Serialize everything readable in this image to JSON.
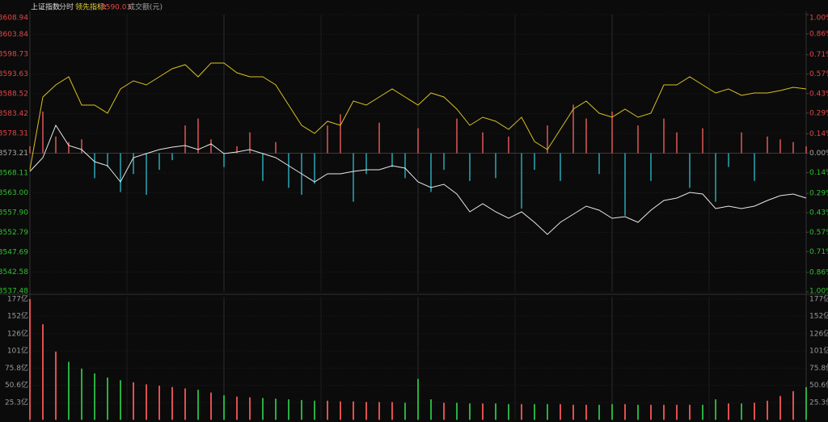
{
  "chart_data": [
    {
      "type": "line",
      "title": "分时",
      "indicator": {
        "label": "领先指标:",
        "value": 3590.03
      },
      "ylim": [
        3537.48,
        3608.94
      ],
      "yticks": [
        {
          "value": 3608.94,
          "label": "3608.94"
        },
        {
          "value": 3603.84,
          "label": "3603.84"
        },
        {
          "value": 3598.73,
          "label": "3598.73"
        },
        {
          "value": 3593.63,
          "label": "3593.63"
        },
        {
          "value": 3588.52,
          "label": "3588.52"
        },
        {
          "value": 3583.42,
          "label": "3583.42"
        },
        {
          "value": 3578.31,
          "label": "3578.31"
        },
        {
          "value": 3573.21,
          "label": "3573.21"
        },
        {
          "value": 3568.11,
          "label": "3568.11"
        },
        {
          "value": 3563.0,
          "label": "3563.00"
        },
        {
          "value": 3557.9,
          "label": "3557.90"
        },
        {
          "value": 3552.79,
          "label": "3552.79"
        },
        {
          "value": 3547.69,
          "label": "3547.69"
        },
        {
          "value": 3542.58,
          "label": "3542.58"
        },
        {
          "value": 3537.48,
          "label": "3537.48"
        }
      ],
      "y2lim": [
        -1,
        1
      ],
      "y2ticks": [
        {
          "value": 1,
          "label": "1.00%"
        },
        {
          "value": 0.86,
          "label": "0.86%"
        },
        {
          "value": 0.71,
          "label": "0.71%"
        },
        {
          "value": 0.57,
          "label": "0.57%"
        },
        {
          "value": 0.43,
          "label": "0.43%"
        },
        {
          "value": 0.29,
          "label": "0.29%"
        },
        {
          "value": 0.14,
          "label": "0.14%"
        },
        {
          "value": 0,
          "label": "0.00%"
        },
        {
          "value": -0.14,
          "label": "0.14%"
        },
        {
          "value": -0.29,
          "label": "0.29%"
        },
        {
          "value": -0.43,
          "label": "0.43%"
        },
        {
          "value": -0.57,
          "label": "0.57%"
        },
        {
          "value": -0.71,
          "label": "0.71%"
        },
        {
          "value": -0.86,
          "label": "0.86%"
        },
        {
          "value": -1,
          "label": "1.00%"
        }
      ],
      "up_color": "#e04848",
      "down_color": "#30c030",
      "flat_color": "#aaaaaa",
      "series": [
        {
          "name": "上证指数",
          "color": "#e8e8e8",
          "values": [
            3568.52,
            3572.06,
            3580.4,
            3575.19,
            3574.15,
            3571.02,
            3569.98,
            3565.82,
            3572.06,
            3573.1,
            3574.15,
            3574.77,
            3575.19,
            3574.15,
            3575.6,
            3573.1,
            3573.52,
            3574.15,
            3573.1,
            3572.06,
            3569.98,
            3567.9,
            3565.82,
            3567.9,
            3567.9,
            3568.52,
            3568.94,
            3568.94,
            3569.98,
            3569.36,
            3565.82,
            3564.36,
            3565.19,
            3562.69,
            3558.11,
            3560.19,
            3558.11,
            3556.44,
            3558.11,
            3555.4,
            3552.27,
            3555.4,
            3557.48,
            3559.56,
            3558.52,
            3556.44,
            3556.86,
            3555.4,
            3558.52,
            3561.02,
            3561.65,
            3563.11,
            3562.69,
            3558.94,
            3559.56,
            3558.94,
            3559.56,
            3561.02,
            3562.27,
            3562.69,
            3561.65
          ]
        },
        {
          "color": "#d8c020",
          "values": [
            3568.94,
            3587.69,
            3590.81,
            3592.9,
            3585.61,
            3585.61,
            3583.52,
            3589.77,
            3591.86,
            3590.81,
            3592.9,
            3594.98,
            3596.02,
            3592.9,
            3596.44,
            3596.44,
            3593.94,
            3592.9,
            3592.9,
            3590.81,
            3585.61,
            3580.4,
            3578.31,
            3581.44,
            3580.4,
            3586.65,
            3585.61,
            3587.69,
            3589.77,
            3587.69,
            3585.61,
            3588.73,
            3587.69,
            3584.56,
            3580.4,
            3582.48,
            3581.44,
            3579.35,
            3582.48,
            3576.23,
            3574.15,
            3579.35,
            3584.56,
            3586.65,
            3583.52,
            3582.48,
            3584.56,
            3582.48,
            3583.52,
            3590.81,
            3590.81,
            3592.9,
            3590.81,
            3588.73,
            3589.77,
            3588.1,
            3588.73,
            3588.73,
            3589.36,
            3590.19,
            3589.77
          ]
        }
      ],
      "bars": {
        "axis": "y2",
        "up_color": "#e05858",
        "down_color": "#2aa8b8",
        "values": [
          0.05,
          0.3,
          0.12,
          0.08,
          0.1,
          -0.18,
          -0.1,
          -0.28,
          -0.15,
          -0.3,
          -0.12,
          -0.05,
          0.2,
          0.25,
          0.1,
          -0.1,
          0.05,
          0.15,
          -0.2,
          0.08,
          -0.25,
          -0.3,
          -0.22,
          0.2,
          0.28,
          -0.35,
          -0.15,
          0.22,
          -0.1,
          -0.18,
          0.18,
          -0.28,
          -0.12,
          0.25,
          -0.2,
          0.15,
          -0.18,
          0.12,
          -0.4,
          -0.12,
          0.2,
          -0.2,
          0.35,
          0.25,
          -0.15,
          0.3,
          -0.45,
          0.2,
          -0.2,
          0.25,
          0.15,
          -0.25,
          0.18,
          -0.35,
          -0.1,
          0.15,
          -0.2,
          0.12,
          0.1,
          0.08,
          0.05
        ]
      }
    },
    {
      "type": "bar",
      "title": "成交额(元)",
      "ylim": [
        0,
        180
      ],
      "yticks": [
        {
          "value": 177,
          "label": "177亿"
        },
        {
          "value": 152,
          "label": "152亿"
        },
        {
          "value": 126,
          "label": "126亿"
        },
        {
          "value": 101,
          "label": "101亿"
        },
        {
          "value": 75.8,
          "label": "75.8亿"
        },
        {
          "value": 50.6,
          "label": "50.6亿"
        },
        {
          "value": 25.3,
          "label": "25.3亿"
        }
      ],
      "up_color": "#e05050",
      "down_color": "#28b040",
      "values": [
        177,
        140,
        100,
        85,
        75,
        68,
        62,
        58,
        55,
        52,
        50,
        48,
        46,
        44,
        40,
        36,
        34,
        33,
        32,
        31,
        30,
        29,
        28,
        28,
        27,
        27,
        26,
        26,
        26,
        25,
        60,
        30,
        25,
        25,
        24,
        24,
        24,
        23,
        23,
        23,
        23,
        23,
        22,
        22,
        22,
        23,
        23,
        22,
        22,
        22,
        22,
        22,
        22,
        30,
        24,
        24,
        25,
        28,
        35,
        42,
        48
      ]
    }
  ]
}
